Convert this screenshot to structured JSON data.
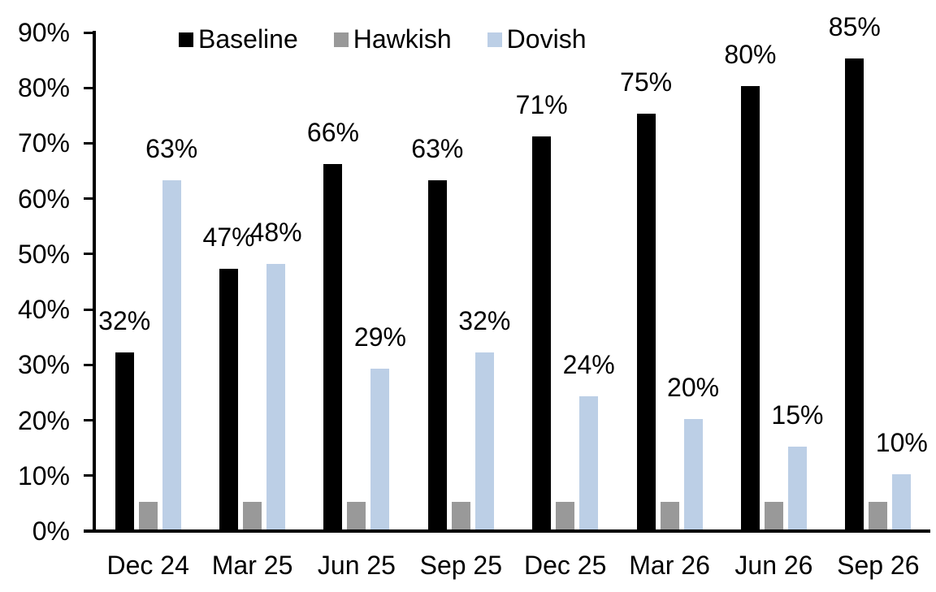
{
  "chart_data": {
    "type": "bar",
    "title": "",
    "xlabel": "",
    "ylabel": "",
    "categories": [
      "Dec 24",
      "Mar 25",
      "Jun 25",
      "Sep 25",
      "Dec 25",
      "Mar 26",
      "Jun 26",
      "Sep 26"
    ],
    "series": [
      {
        "name": "Baseline",
        "color": "#000000",
        "values": [
          32,
          47,
          66,
          63,
          71,
          75,
          80,
          85
        ],
        "data_labels": [
          "32%",
          "47%",
          "66%",
          "63%",
          "71%",
          "75%",
          "80%",
          "85%"
        ]
      },
      {
        "name": "Hawkish",
        "color": "#999999",
        "values": [
          5,
          5,
          5,
          5,
          5,
          5,
          5,
          5
        ],
        "data_labels": null
      },
      {
        "name": "Dovish",
        "color": "#bccfe6",
        "values": [
          63,
          48,
          29,
          32,
          24,
          20,
          15,
          10
        ],
        "data_labels": [
          "63%",
          "48%",
          "29%",
          "32%",
          "24%",
          "20%",
          "15%",
          "10%"
        ]
      }
    ],
    "ylim": [
      0,
      90
    ],
    "ytick_step": 10,
    "ytick_labels": [
      "0%",
      "10%",
      "20%",
      "30%",
      "40%",
      "50%",
      "60%",
      "70%",
      "80%",
      "90%"
    ],
    "grid": false,
    "legend_position": "top",
    "axis_color": "#000000",
    "text_color": "#000000",
    "background_color": "#ffffff"
  }
}
